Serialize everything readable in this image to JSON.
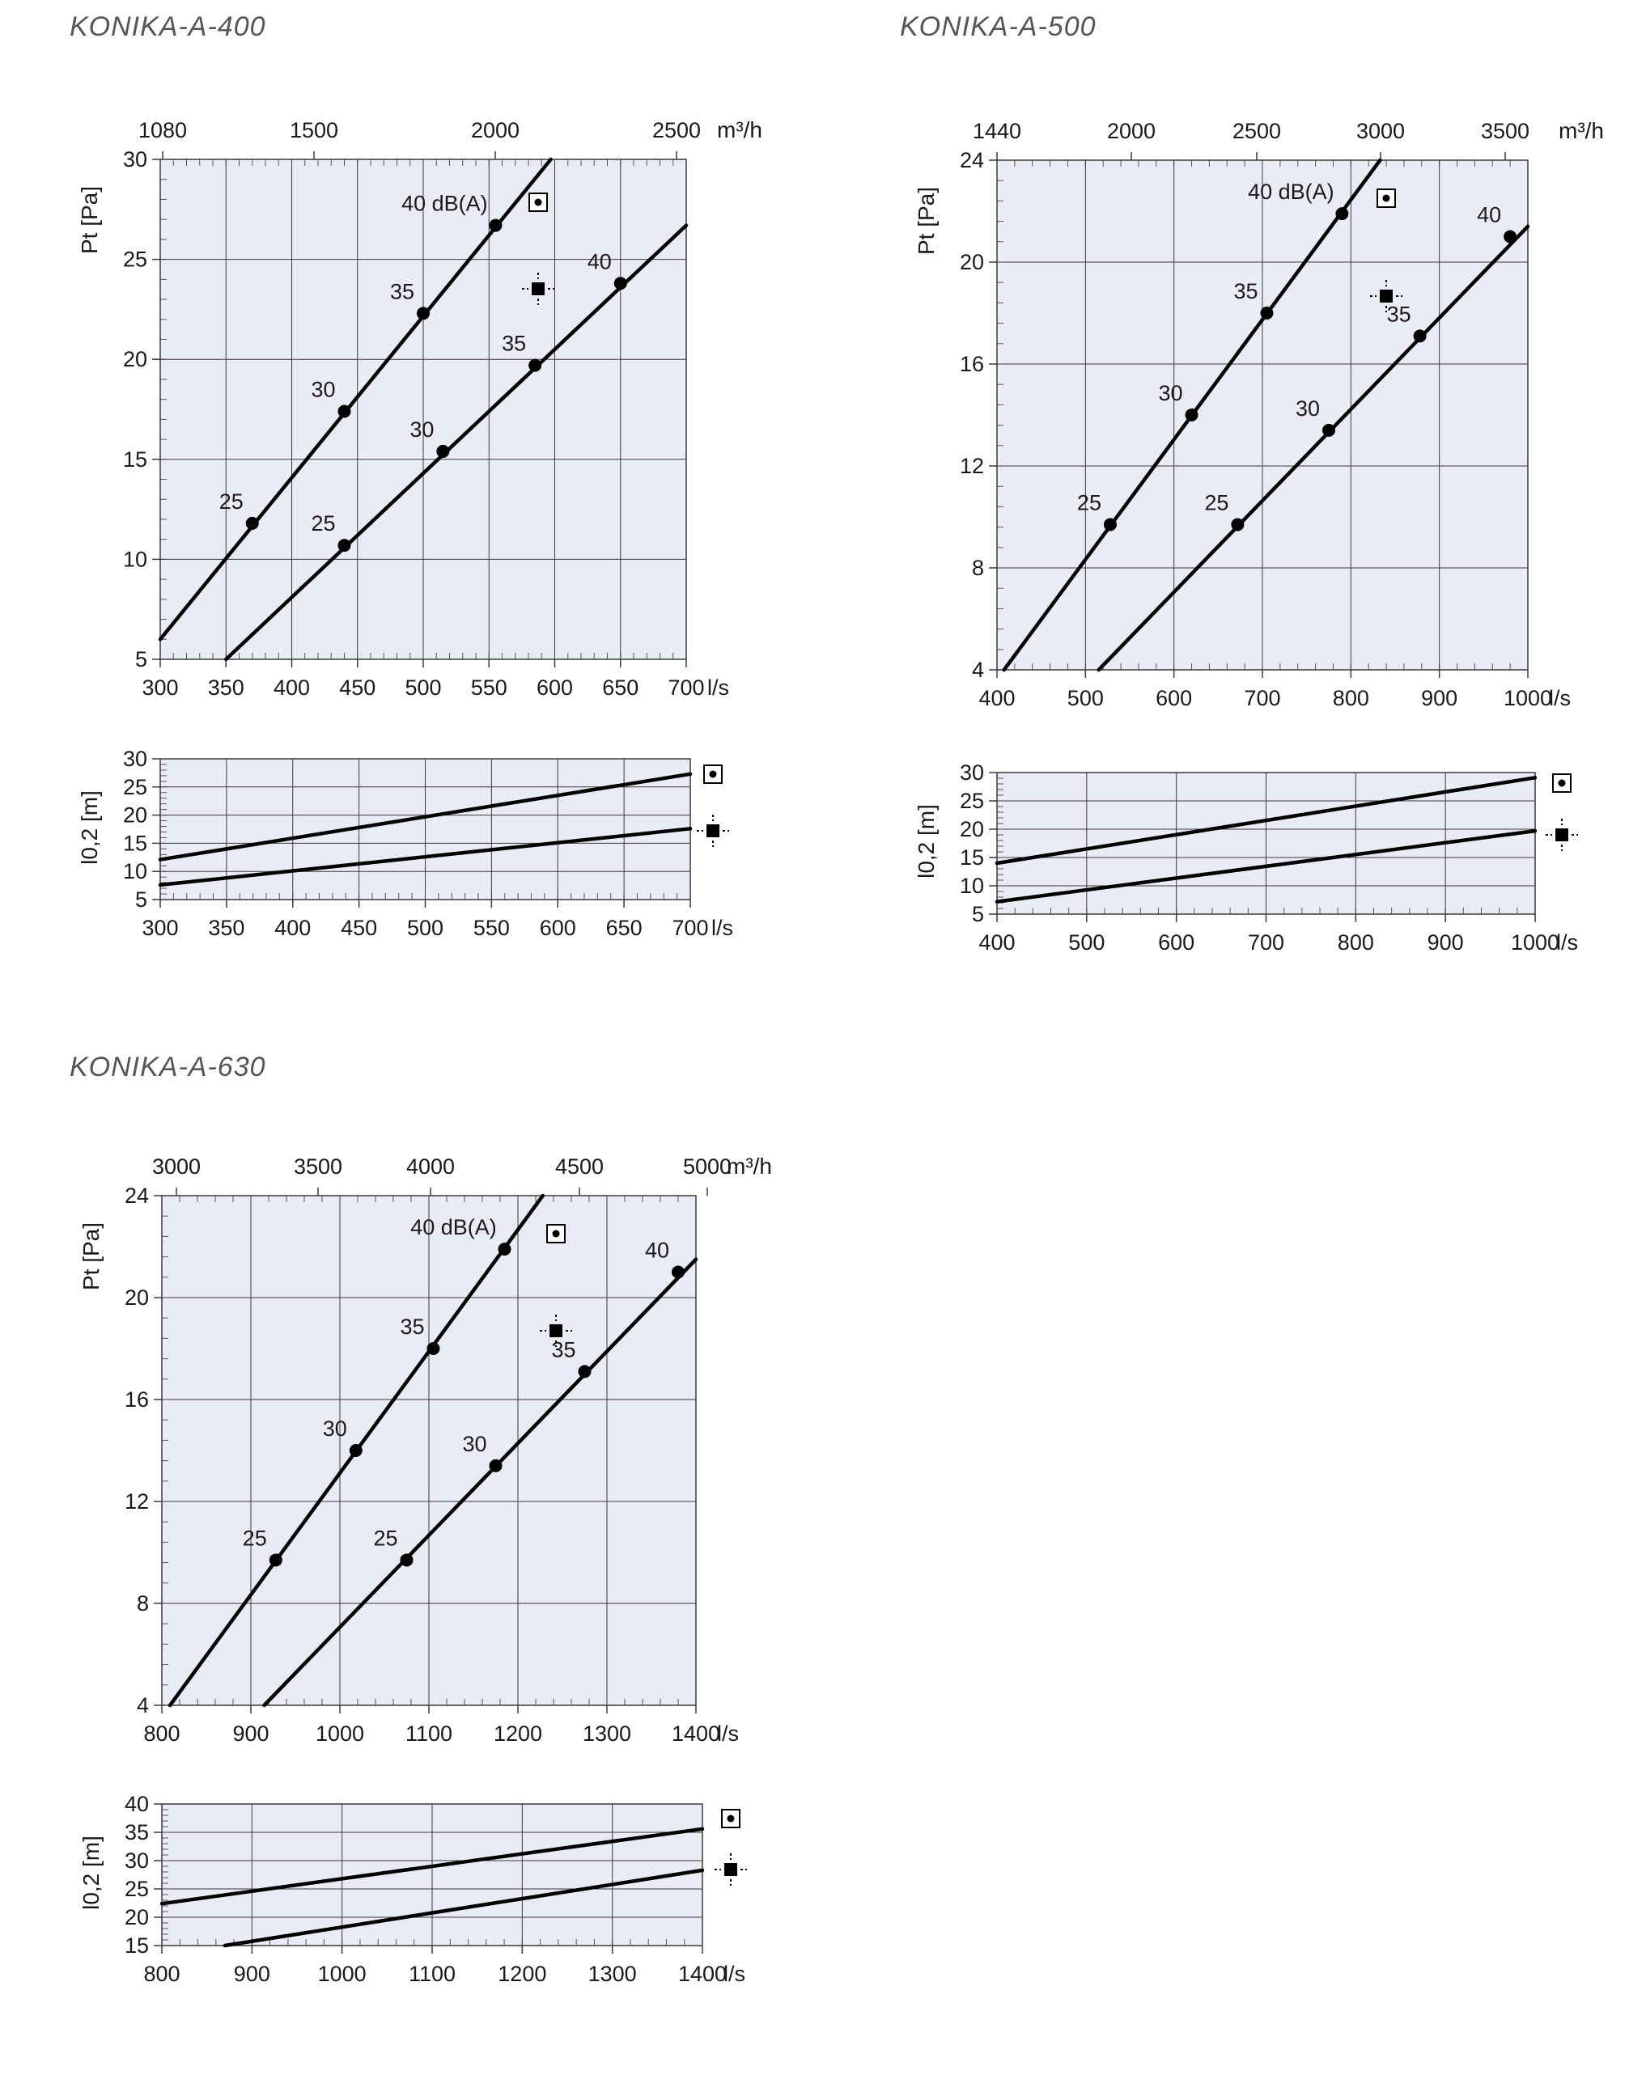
{
  "colors": {
    "plot_bg": "#e9ecf5",
    "grid": "#3a3a3a",
    "line": "#000000",
    "text": "#1a1a1a",
    "title": "#555555"
  },
  "icons": {
    "symbol_1": "ceiling-diffuser-dot-in-square-icon",
    "symbol_2": "ceiling-diffuser-square-with-arrows-icon"
  },
  "chart_data": [
    {
      "id": "konika-a-400",
      "title": "KONIKA-A-400",
      "main": {
        "type": "line",
        "xlabel": "l/s",
        "x2label": "m³/h",
        "ylabel": "Pt [Pa]",
        "xlim": [
          300,
          700
        ],
        "ylim": [
          5,
          30
        ],
        "x_ticks": [
          300,
          350,
          400,
          450,
          500,
          550,
          600,
          650,
          700
        ],
        "y_ticks": [
          5,
          10,
          15,
          20,
          25,
          30
        ],
        "x2_ticks": [
          1080,
          1500,
          2000,
          2500
        ],
        "grid": true,
        "series": [
          {
            "symbol": "symbol_1",
            "line": [
              [
                300,
                6.0
              ],
              [
                597,
                30.0
              ]
            ],
            "points": [
              [
                370,
                11.8
              ],
              [
                440,
                17.4
              ],
              [
                500,
                22.3
              ],
              [
                555,
                26.7
              ]
            ],
            "point_labels": [
              "25",
              "30",
              "35",
              "40 dB(A)"
            ]
          },
          {
            "symbol": "symbol_2",
            "line": [
              [
                350,
                5.0
              ],
              [
                700,
                26.7
              ]
            ],
            "points": [
              [
                440,
                10.7
              ],
              [
                515,
                15.4
              ],
              [
                585,
                19.7
              ],
              [
                650,
                23.8
              ]
            ],
            "point_labels": [
              "25",
              "30",
              "35",
              "40"
            ]
          }
        ]
      },
      "throw": {
        "type": "line",
        "xlabel": "l/s",
        "ylabel": "l0,2 [m]",
        "xlim": [
          300,
          700
        ],
        "ylim": [
          5,
          30
        ],
        "x_ticks": [
          300,
          350,
          400,
          450,
          500,
          550,
          600,
          650,
          700
        ],
        "y_ticks": [
          5,
          10,
          15,
          20,
          25,
          30
        ],
        "series": [
          {
            "symbol": "symbol_1",
            "line": [
              [
                300,
                12.1
              ],
              [
                700,
                27.3
              ]
            ]
          },
          {
            "symbol": "symbol_2",
            "line": [
              [
                300,
                7.6
              ],
              [
                700,
                17.6
              ]
            ]
          }
        ]
      }
    },
    {
      "id": "konika-a-500",
      "title": "KONIKA-A-500",
      "main": {
        "type": "line",
        "xlabel": "l/s",
        "x2label": "m³/h",
        "ylabel": "Pt [Pa]",
        "xlim": [
          400,
          1000
        ],
        "ylim": [
          4,
          24
        ],
        "x_ticks": [
          400,
          500,
          600,
          700,
          800,
          900,
          1000
        ],
        "y_ticks": [
          4,
          8,
          12,
          16,
          20,
          24
        ],
        "x2_ticks": [
          1440,
          2000,
          2500,
          3000,
          3500
        ],
        "grid": true,
        "series": [
          {
            "symbol": "symbol_1",
            "line": [
              [
                408,
                4.0
              ],
              [
                833,
                24.0
              ]
            ],
            "points": [
              [
                528,
                9.7
              ],
              [
                620,
                14.0
              ],
              [
                705,
                18.0
              ],
              [
                790,
                21.9
              ]
            ],
            "point_labels": [
              "25",
              "30",
              "35",
              "40 dB(A)"
            ]
          },
          {
            "symbol": "symbol_2",
            "line": [
              [
                515,
                4.0
              ],
              [
                1000,
                21.4
              ]
            ],
            "points": [
              [
                672,
                9.7
              ],
              [
                775,
                13.4
              ],
              [
                878,
                17.1
              ],
              [
                980,
                21.0
              ]
            ],
            "point_labels": [
              "25",
              "30",
              "35",
              "40"
            ]
          }
        ]
      },
      "throw": {
        "type": "line",
        "xlabel": "l/s",
        "ylabel": "l0,2 [m]",
        "xlim": [
          400,
          1000
        ],
        "ylim": [
          5,
          30
        ],
        "x_ticks": [
          400,
          500,
          600,
          700,
          800,
          900,
          1000
        ],
        "y_ticks": [
          5,
          10,
          15,
          20,
          25,
          30
        ],
        "series": [
          {
            "symbol": "symbol_1",
            "line": [
              [
                400,
                14.0
              ],
              [
                1000,
                29.1
              ]
            ]
          },
          {
            "symbol": "symbol_2",
            "line": [
              [
                400,
                7.2
              ],
              [
                1000,
                19.7
              ]
            ]
          }
        ]
      }
    },
    {
      "id": "konika-a-630",
      "title": "KONIKA-A-630",
      "main": {
        "type": "line",
        "xlabel": "l/s",
        "x2label": "m³/h",
        "ylabel": "Pt [Pa]",
        "xlim": [
          800,
          1400
        ],
        "ylim": [
          4,
          24
        ],
        "x_ticks": [
          800,
          900,
          1000,
          1100,
          1200,
          1300,
          1400
        ],
        "y_ticks": [
          4,
          8,
          12,
          16,
          20,
          24
        ],
        "x2_ticks": [
          3000,
          3500,
          4000,
          4500,
          5000
        ],
        "grid": true,
        "series": [
          {
            "symbol": "symbol_1",
            "line": [
              [
                805,
                3.8
              ],
              [
                1228,
                24.0
              ]
            ],
            "points": [
              [
                928,
                9.7
              ],
              [
                1018,
                14.0
              ],
              [
                1105,
                18.0
              ],
              [
                1185,
                21.9
              ]
            ],
            "point_labels": [
              "25",
              "30",
              "35",
              "40 dB(A)"
            ]
          },
          {
            "symbol": "symbol_2",
            "line": [
              [
                915,
                4.0
              ],
              [
                1400,
                21.5
              ]
            ],
            "points": [
              [
                1075,
                9.7
              ],
              [
                1175,
                13.4
              ],
              [
                1275,
                17.1
              ],
              [
                1380,
                21.0
              ]
            ],
            "point_labels": [
              "25",
              "30",
              "35",
              "40"
            ]
          }
        ]
      },
      "throw": {
        "type": "line",
        "xlabel": "l/s",
        "ylabel": "l0,2 [m]",
        "xlim": [
          800,
          1400
        ],
        "ylim": [
          15,
          40
        ],
        "x_ticks": [
          800,
          900,
          1000,
          1100,
          1200,
          1300,
          1400
        ],
        "y_ticks": [
          15,
          20,
          25,
          30,
          35,
          40
        ],
        "series": [
          {
            "symbol": "symbol_1",
            "line": [
              [
                800,
                22.4
              ],
              [
                1400,
                35.6
              ]
            ]
          },
          {
            "symbol": "symbol_2",
            "line": [
              [
                870,
                15.0
              ],
              [
                1400,
                28.3
              ]
            ]
          }
        ]
      }
    }
  ]
}
